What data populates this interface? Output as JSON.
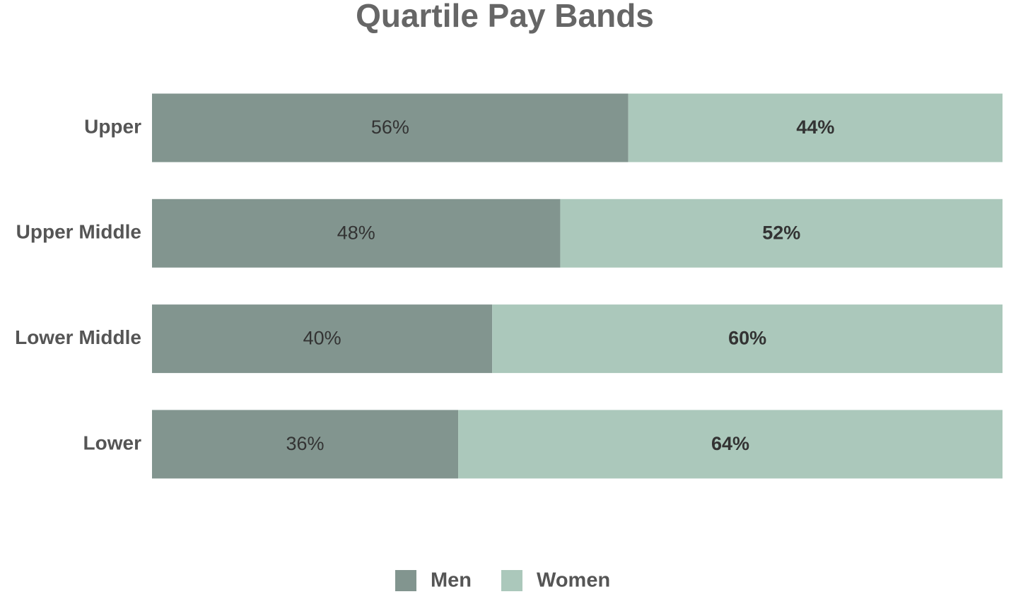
{
  "chart_data": {
    "type": "stacked-bar-horizontal",
    "title": "Quartile Pay Bands",
    "categories": [
      "Upper",
      "Upper Middle",
      "Lower Middle",
      "Lower"
    ],
    "series": [
      {
        "name": "Men",
        "color": "#82958f",
        "values": [
          56,
          48,
          40,
          36
        ],
        "value_labels": [
          "56%",
          "48%",
          "40%",
          "36%"
        ]
      },
      {
        "name": "Women",
        "color": "#abc8bb",
        "values": [
          44,
          52,
          60,
          64
        ],
        "value_labels": [
          "44%",
          "52%",
          "60%",
          "64%"
        ]
      }
    ],
    "xlim": [
      0,
      100
    ],
    "legend": "bottom"
  }
}
